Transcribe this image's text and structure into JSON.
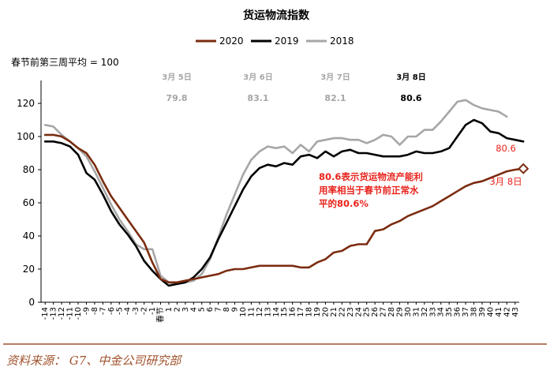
{
  "chart_data": {
    "type": "line",
    "title": "货运物流指数",
    "note": "春节前第三周平均 = 100",
    "ylim": [
      0,
      130
    ],
    "yticks": [
      0,
      20,
      40,
      60,
      80,
      100,
      120
    ],
    "x_labels": [
      "-14",
      "-13",
      "-12",
      "-11",
      "-10",
      "-9",
      "-8",
      "-7",
      "-6",
      "-5",
      "-4",
      "-3",
      "-2",
      "-1",
      "春节",
      "1",
      "2",
      "3",
      "4",
      "5",
      "6",
      "7",
      "8",
      "9",
      "10",
      "11",
      "12",
      "13",
      "14",
      "15",
      "16",
      "17",
      "18",
      "19",
      "20",
      "21",
      "22",
      "23",
      "24",
      "25",
      "26",
      "27",
      "28",
      "29",
      "30",
      "31",
      "32",
      "33",
      "34",
      "35",
      "36",
      "37",
      "38",
      "39",
      "40",
      "41",
      "42",
      "43"
    ],
    "legend": [
      {
        "name": "2020",
        "color": "#7b2c10"
      },
      {
        "name": "2019",
        "color": "#000000"
      },
      {
        "name": "2018",
        "color": "#a6a6a6"
      }
    ],
    "series": [
      {
        "name": "2020",
        "color": "#7b2c10",
        "start_x": -14,
        "values": [
          101,
          101,
          100,
          97,
          93,
          90,
          83,
          73,
          64,
          57,
          50,
          43,
          36,
          24,
          14,
          12,
          12,
          13,
          14,
          15,
          16,
          17,
          19,
          20,
          20,
          21,
          22,
          22,
          22,
          22,
          22,
          21,
          21,
          24,
          26,
          30,
          31,
          34,
          35,
          35,
          43,
          44,
          47,
          49,
          52,
          54,
          56,
          58,
          61,
          64,
          67,
          70,
          72,
          73,
          75,
          77,
          79,
          80,
          80.6
        ]
      },
      {
        "name": "2019",
        "color": "#000000",
        "start_x": -14,
        "values": [
          97,
          97,
          96,
          94,
          89,
          78,
          74,
          65,
          55,
          47,
          41,
          34,
          25,
          19,
          14,
          10,
          11,
          12,
          15,
          20,
          27,
          38,
          48,
          58,
          68,
          76,
          81,
          83,
          82,
          84,
          83,
          88,
          89,
          87,
          91,
          88,
          91,
          92,
          90,
          90,
          89,
          88,
          88,
          88,
          89,
          91,
          90,
          90,
          91,
          93,
          100,
          107,
          110,
          108,
          103,
          102,
          99,
          98,
          97
        ]
      },
      {
        "name": "2018",
        "color": "#a6a6a6",
        "start_x": -14,
        "values": [
          107,
          106,
          101,
          97,
          93,
          88,
          79,
          69,
          59,
          50,
          43,
          35,
          32,
          32,
          16,
          12,
          11,
          12,
          13,
          17,
          26,
          39,
          53,
          65,
          77,
          86,
          91,
          94,
          93,
          94,
          90,
          95,
          91,
          97,
          98,
          99,
          99,
          98,
          98,
          96,
          98,
          101,
          100,
          95,
          100,
          100,
          104,
          104,
          109,
          115,
          121,
          122,
          119,
          117,
          116,
          115,
          112
        ]
      }
    ],
    "annotations": [
      {
        "date": "3月 5日",
        "value": "79.8",
        "color": "#a6a6a6",
        "x": 24
      },
      {
        "date": "3月 6日",
        "value": "83.1",
        "color": "#a6a6a6",
        "x": 31
      },
      {
        "date": "3月 7日",
        "value": "82.1",
        "color": "#a6a6a6",
        "x": 38
      },
      {
        "date": "3月 8日",
        "value": "80.6",
        "color": "#000000",
        "x": 45
      }
    ],
    "callout": {
      "lines": [
        "80.6表示货运物流产能利",
        "用率相当于春节前正常水",
        "平的80.6%"
      ],
      "color": "#e8231c"
    },
    "end_point": {
      "value_label": "80.6",
      "date_label": "3月 8日",
      "color": "#e8231c"
    }
  },
  "source": "资料来源：   G7、中金公司研究部"
}
